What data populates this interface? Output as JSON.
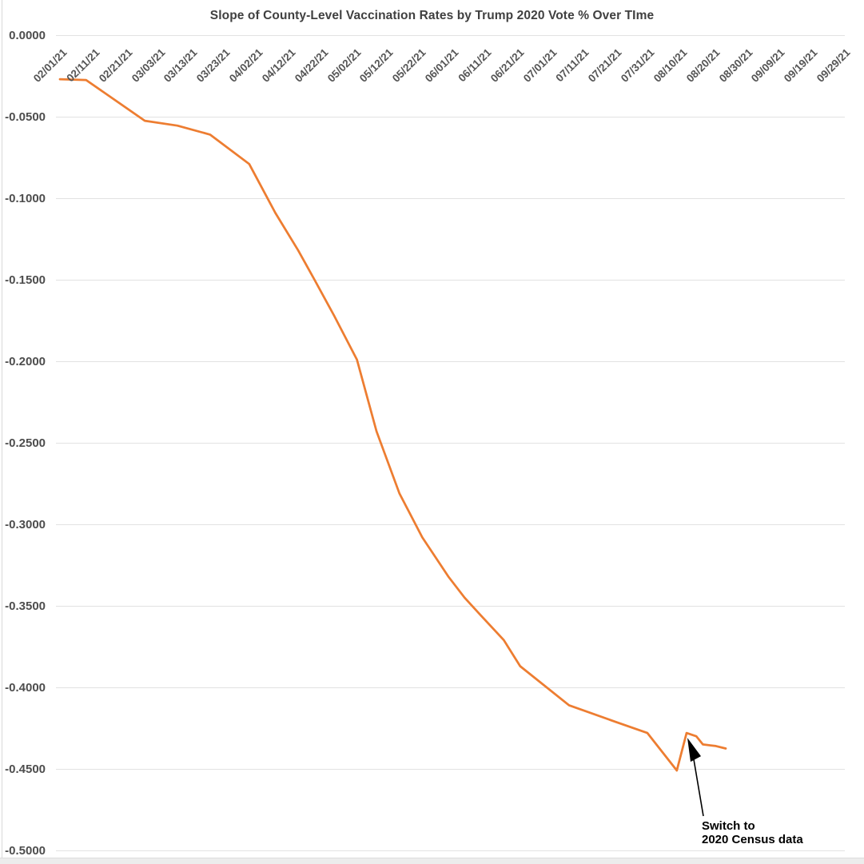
{
  "colors": {
    "line": "#ED7D31",
    "grid": "#E2E2E2",
    "axis_label": "#555555",
    "title": "#404040",
    "annotation": "#000000",
    "background": "#FFFFFF"
  },
  "chart_data": {
    "type": "line",
    "title": "Slope of County-Level Vaccination Rates by Trump 2020 Vote % Over TIme",
    "xlabel": "",
    "ylabel": "",
    "grid": true,
    "legend": false,
    "ylim": [
      -0.5,
      0.0
    ],
    "x_range": [
      "02/01/21",
      "09/29/21"
    ],
    "y_tick_labels": [
      "0.0000",
      "-0.0500",
      "-0.1000",
      "-0.1500",
      "-0.2000",
      "-0.2500",
      "-0.3000",
      "-0.3500",
      "-0.4000",
      "-0.4500",
      "-0.5000"
    ],
    "y_tick_values": [
      0.0,
      -0.05,
      -0.1,
      -0.15,
      -0.2,
      -0.25,
      -0.3,
      -0.35,
      -0.4,
      -0.45,
      -0.5
    ],
    "x_tick_labels": [
      "02/01/21",
      "02/11/21",
      "02/21/21",
      "03/03/21",
      "03/13/21",
      "03/23/21",
      "04/02/21",
      "04/12/21",
      "04/22/21",
      "05/02/21",
      "05/12/21",
      "05/22/21",
      "06/01/21",
      "06/11/21",
      "06/21/21",
      "07/01/21",
      "07/11/21",
      "07/21/21",
      "07/31/21",
      "08/10/21",
      "08/20/21",
      "08/30/21",
      "09/09/21",
      "09/19/21",
      "09/29/21"
    ],
    "x": [
      "02/01/21",
      "02/09/21",
      "02/27/21",
      "03/09/21",
      "03/19/21",
      "03/31/21",
      "04/08/21",
      "04/15/21",
      "04/20/21",
      "04/26/21",
      "05/03/21",
      "05/09/21",
      "05/16/21",
      "05/23/21",
      "05/31/21",
      "06/05/21",
      "06/10/21",
      "06/17/21",
      "06/22/21",
      "07/07/21",
      "07/21/21",
      "07/31/21",
      "08/09/21",
      "08/12/21",
      "08/15/21",
      "08/17/21",
      "08/21/21",
      "08/24/21"
    ],
    "values": [
      -0.027,
      -0.0275,
      -0.0525,
      -0.0555,
      -0.061,
      -0.079,
      -0.109,
      -0.132,
      -0.15,
      -0.172,
      -0.199,
      -0.243,
      -0.281,
      -0.308,
      -0.332,
      -0.345,
      -0.356,
      -0.371,
      -0.387,
      -0.411,
      -0.421,
      -0.428,
      -0.451,
      -0.428,
      -0.43,
      -0.435,
      -0.436,
      -0.4375
    ],
    "annotation": {
      "text_lines": [
        "Switch to",
        "2020 Census data"
      ],
      "points_to_x": "08/12/21",
      "points_to_value": -0.428
    }
  }
}
